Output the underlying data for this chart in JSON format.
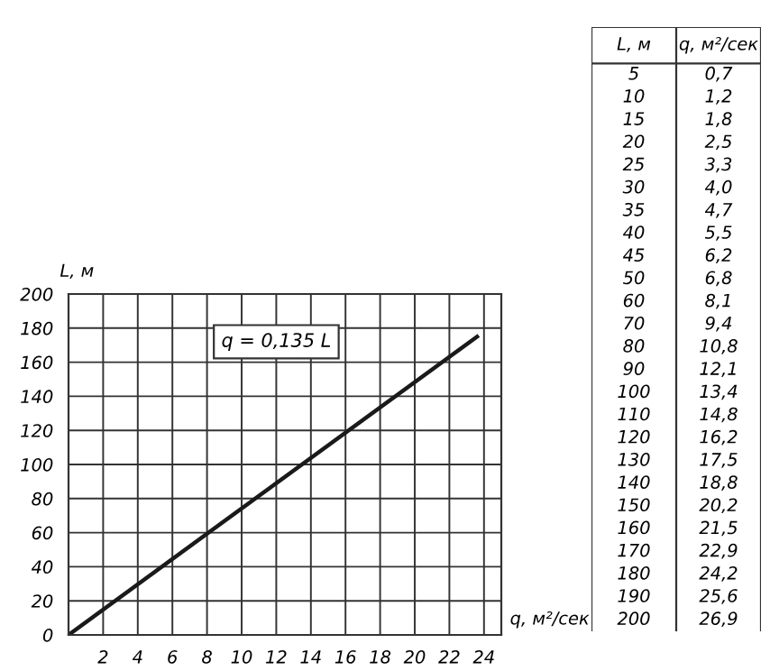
{
  "chart_data": [
    {
      "type": "line",
      "xlabel": "q, м²/сек",
      "ylabel": "L, м",
      "x": [
        0,
        23.6
      ],
      "series": [
        {
          "color": "#1a1a1a",
          "values": [
            0,
            175
          ]
        }
      ],
      "xlim": [
        0,
        25
      ],
      "ylim": [
        0,
        200
      ],
      "xticks": [
        2,
        4,
        6,
        8,
        10,
        12,
        14,
        16,
        18,
        20,
        22,
        24
      ],
      "yticks": [
        0,
        20,
        40,
        60,
        80,
        100,
        120,
        140,
        160,
        180,
        200
      ],
      "grid": true,
      "annotations": [
        "q = 0,135 L"
      ]
    },
    {
      "type": "other",
      "xlabel": "L, м",
      "ylabel": "q, м²/сек",
      "categories": [
        "5",
        "10",
        "15",
        "20",
        "25",
        "30",
        "35",
        "40",
        "45",
        "50",
        "60",
        "70",
        "80",
        "90",
        "100",
        "110",
        "120",
        "130",
        "140",
        "150",
        "160",
        "170",
        "180",
        "190",
        "200"
      ],
      "value_labels": [
        "0,7",
        "1,2",
        "1,8",
        "2,5",
        "3,3",
        "4,0",
        "4,7",
        "5,5",
        "6,2",
        "6,8",
        "8,1",
        "9,4",
        "10,8",
        "12,1",
        "13,4",
        "14,8",
        "16,2",
        "17,5",
        "18,8",
        "20,2",
        "21,5",
        "22,9",
        "24,2",
        "25,6",
        "26,9"
      ]
    }
  ]
}
